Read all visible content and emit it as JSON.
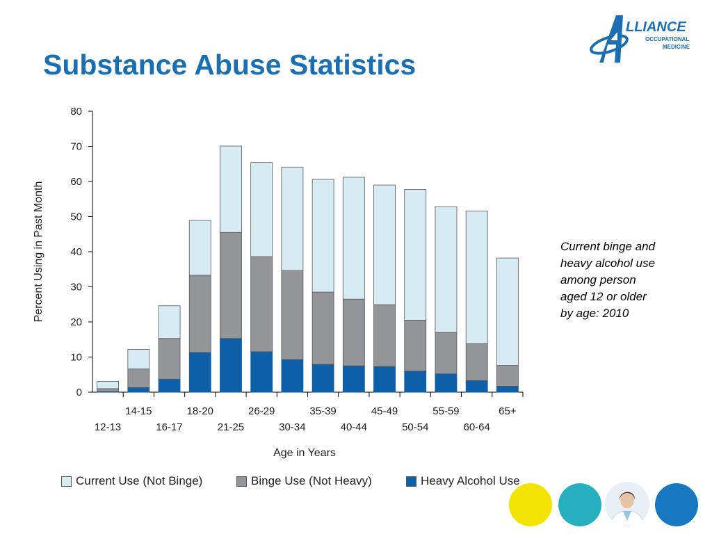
{
  "slide": {
    "title": "Substance Abuse Statistics",
    "note": "Current binge and heavy alcohol use among person aged 12 or older by age: 2010"
  },
  "logo": {
    "line1": "LLIANCE",
    "line2": "OCCUPATIONAL",
    "line3": "MEDICINE"
  },
  "colors": {
    "title": "#1a6fb2",
    "current": "#d6ebf4",
    "binge": "#939598",
    "heavy": "#0d5fa7",
    "circle_yellow": "#f2e400",
    "circle_teal": "#26b0bf",
    "circle_blue": "#1778c0"
  },
  "chart_data": {
    "type": "bar",
    "stacked": true,
    "categories": [
      "12-13",
      "14-15",
      "16-17",
      "18-20",
      "21-25",
      "26-29",
      "30-34",
      "35-39",
      "40-44",
      "45-49",
      "50-54",
      "55-59",
      "60-64",
      "65+"
    ],
    "series": [
      {
        "name": "Heavy Alcohol Use",
        "color": "#0d5fa7",
        "values": [
          0.2,
          1.3,
          3.7,
          11.3,
          15.3,
          11.5,
          9.3,
          7.9,
          7.5,
          7.3,
          6.0,
          5.2,
          3.3,
          1.7
        ]
      },
      {
        "name": "Binge Use (Not Heavy)",
        "color": "#939598",
        "values": [
          0.8,
          5.3,
          11.6,
          22.0,
          30.2,
          27.1,
          25.3,
          20.6,
          19.0,
          17.6,
          14.5,
          11.8,
          10.5,
          5.9
        ]
      },
      {
        "name": "Current Use (Not Binge)",
        "color": "#d6ebf4",
        "values": [
          2.1,
          5.6,
          9.3,
          15.6,
          24.6,
          26.8,
          29.5,
          32.1,
          34.7,
          34.1,
          37.2,
          35.8,
          37.8,
          30.6
        ]
      }
    ],
    "ylabel": "Percent Using in Past Month",
    "xlabel": "Age in Years",
    "ylim": [
      0,
      80
    ],
    "yticks": [
      0,
      10,
      20,
      30,
      40,
      50,
      60,
      70,
      80
    ],
    "grid": false,
    "legend_position": "bottom",
    "legend_order": [
      "Current Use (Not Binge)",
      "Binge Use (Not Heavy)",
      "Heavy Alcohol Use"
    ]
  }
}
